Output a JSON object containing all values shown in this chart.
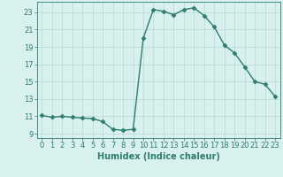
{
  "x": [
    0,
    1,
    2,
    3,
    4,
    5,
    6,
    7,
    8,
    9,
    10,
    11,
    12,
    13,
    14,
    15,
    16,
    17,
    18,
    19,
    20,
    21,
    22,
    23
  ],
  "y": [
    11.1,
    10.9,
    11.0,
    10.9,
    10.8,
    10.75,
    10.4,
    9.5,
    9.4,
    9.5,
    20.0,
    23.3,
    23.1,
    22.7,
    23.3,
    23.5,
    22.6,
    21.3,
    19.2,
    18.3,
    16.7,
    15.0,
    14.7,
    13.3
  ],
  "line_color": "#2e7d6e",
  "marker": "D",
  "markersize": 2.5,
  "linewidth": 1.0,
  "bg_color": "#d8f0ee",
  "grid_color": "#b8d8d4",
  "xlabel": "Humidex (Indice chaleur)",
  "xlabel_fontsize": 7,
  "xlabel_color": "#2e7d6e",
  "ylabel_ticks": [
    9,
    11,
    13,
    15,
    17,
    19,
    21,
    23
  ],
  "xticks": [
    0,
    1,
    2,
    3,
    4,
    5,
    6,
    7,
    8,
    9,
    10,
    11,
    12,
    13,
    14,
    15,
    16,
    17,
    18,
    19,
    20,
    21,
    22,
    23
  ],
  "ylim": [
    8.5,
    24.2
  ],
  "xlim": [
    -0.5,
    23.5
  ],
  "tick_color": "#2e7d6e",
  "tick_fontsize": 6
}
